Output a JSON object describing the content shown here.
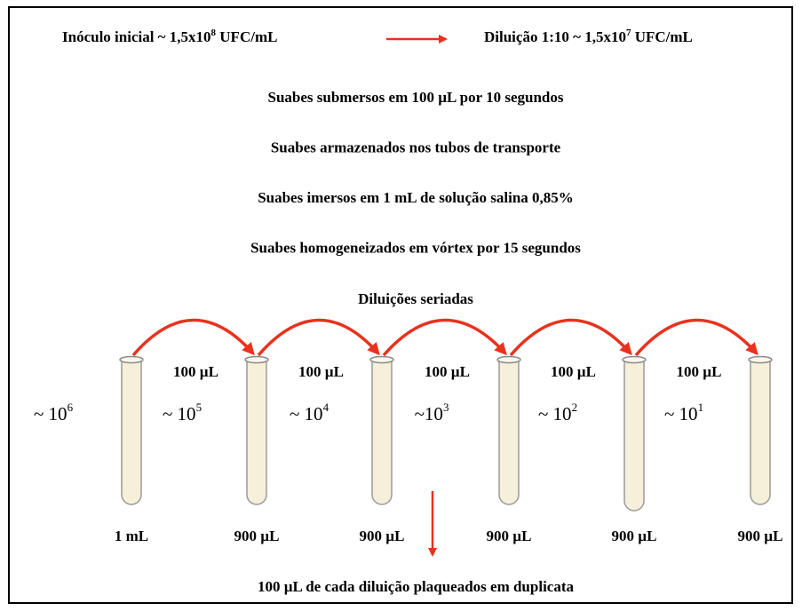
{
  "header": {
    "inoculum": {
      "text": "Inóculo inicial ~ 1,5x10",
      "exponent": "8",
      "unit": " UFC/mL"
    },
    "dilution": {
      "text": "Diluição 1:10 ~ 1,5x10",
      "exponent": "7",
      "unit": " UFC/mL"
    }
  },
  "steps": [
    "Suabes submersos em 100 µL por 10 segundos",
    "Suabes armazenados nos tubos de transporte",
    "Suabes imersos em 1 mL de solução salina 0,85%",
    "Suabes homogeneizados em vórtex por 15 segundos"
  ],
  "serial_dilution": {
    "title": "Diluições seriadas",
    "tubes": [
      {
        "volume": "1 mL",
        "concentration": {
          "text": "~ 10",
          "exponent": "6"
        }
      },
      {
        "volume": "900 µL",
        "concentration": {
          "text": "~ 10",
          "exponent": "5"
        }
      },
      {
        "volume": "900 µL",
        "concentration": {
          "text": "~ 10",
          "exponent": "4"
        }
      },
      {
        "volume": "900 µL",
        "concentration": {
          "text": "~10",
          "exponent": "3"
        }
      },
      {
        "volume": "900 µL",
        "concentration": {
          "text": "~ 10",
          "exponent": "2"
        }
      },
      {
        "volume": "900 µL",
        "concentration": {
          "text": "~ 10",
          "exponent": "1"
        }
      }
    ],
    "transfers": [
      "100 µL",
      "100 µL",
      "100 µL",
      "100 µL",
      "100 µL"
    ]
  },
  "footer": "100 µL de cada diluição plaqueados em duplicata"
}
